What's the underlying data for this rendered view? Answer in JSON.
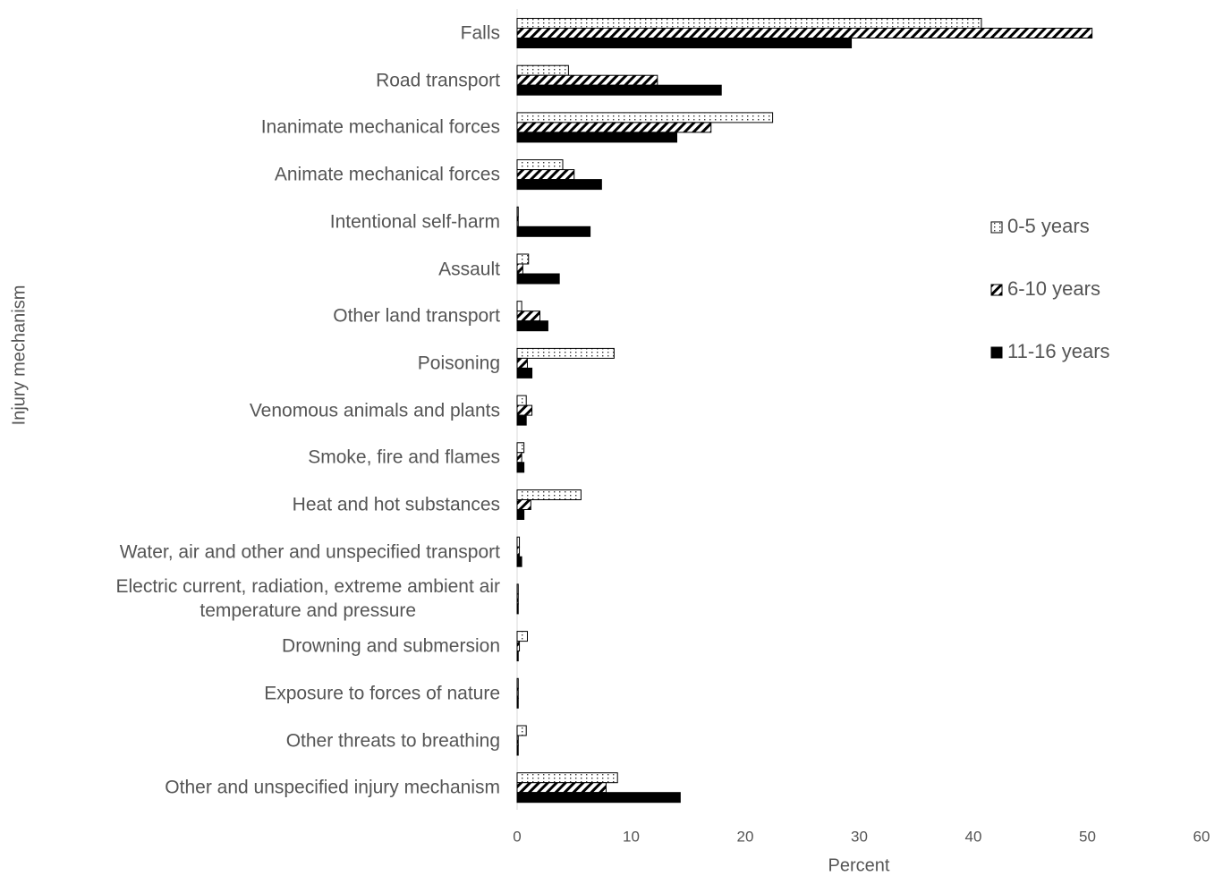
{
  "chart_data": {
    "type": "hbar",
    "x_label": "Percent",
    "y_label": "Injury mechanism",
    "categories": [
      "Falls",
      "Road transport",
      "Inanimate mechanical forces",
      "Animate mechanical forces",
      "Intentional self-harm",
      "Assault",
      "Other land transport",
      "Poisoning",
      "Venomous animals and plants",
      "Smoke, fire and flames",
      "Heat and hot substances",
      "Water, air and other and unspecified transport",
      "Electric current, radiation, extreme ambient air\ntemperature and pressure",
      "Drowning and submersion",
      "Exposure to forces of nature",
      "Other threats to breathing",
      "Other and unspecified injury mechanism"
    ],
    "series": [
      {
        "name": "0-5 years",
        "color": "#000000",
        "pattern": "dots",
        "values": [
          40.7,
          4.5,
          22.4,
          4.0,
          0.1,
          1.0,
          0.4,
          8.5,
          0.8,
          0.6,
          5.6,
          0.2,
          0.1,
          0.9,
          0.1,
          0.8,
          8.8
        ]
      },
      {
        "name": "6-10 years",
        "color": "#000000",
        "pattern": "hatch",
        "values": [
          50.4,
          12.3,
          17.0,
          5.0,
          0.1,
          0.5,
          2.0,
          0.9,
          1.3,
          0.4,
          1.2,
          0.2,
          0.1,
          0.2,
          0.1,
          0.1,
          7.8
        ]
      },
      {
        "name": "11-16 years",
        "color": "#000000",
        "pattern": "solid",
        "values": [
          29.3,
          17.9,
          14.0,
          7.4,
          6.4,
          3.7,
          2.7,
          1.3,
          0.8,
          0.6,
          0.6,
          0.4,
          0.1,
          0.1,
          0.1,
          0.1,
          14.3
        ]
      }
    ],
    "xlim": [
      0,
      60
    ],
    "xticks": [
      0,
      10,
      20,
      30,
      40,
      50,
      60
    ],
    "grid": false,
    "legend": "right"
  }
}
